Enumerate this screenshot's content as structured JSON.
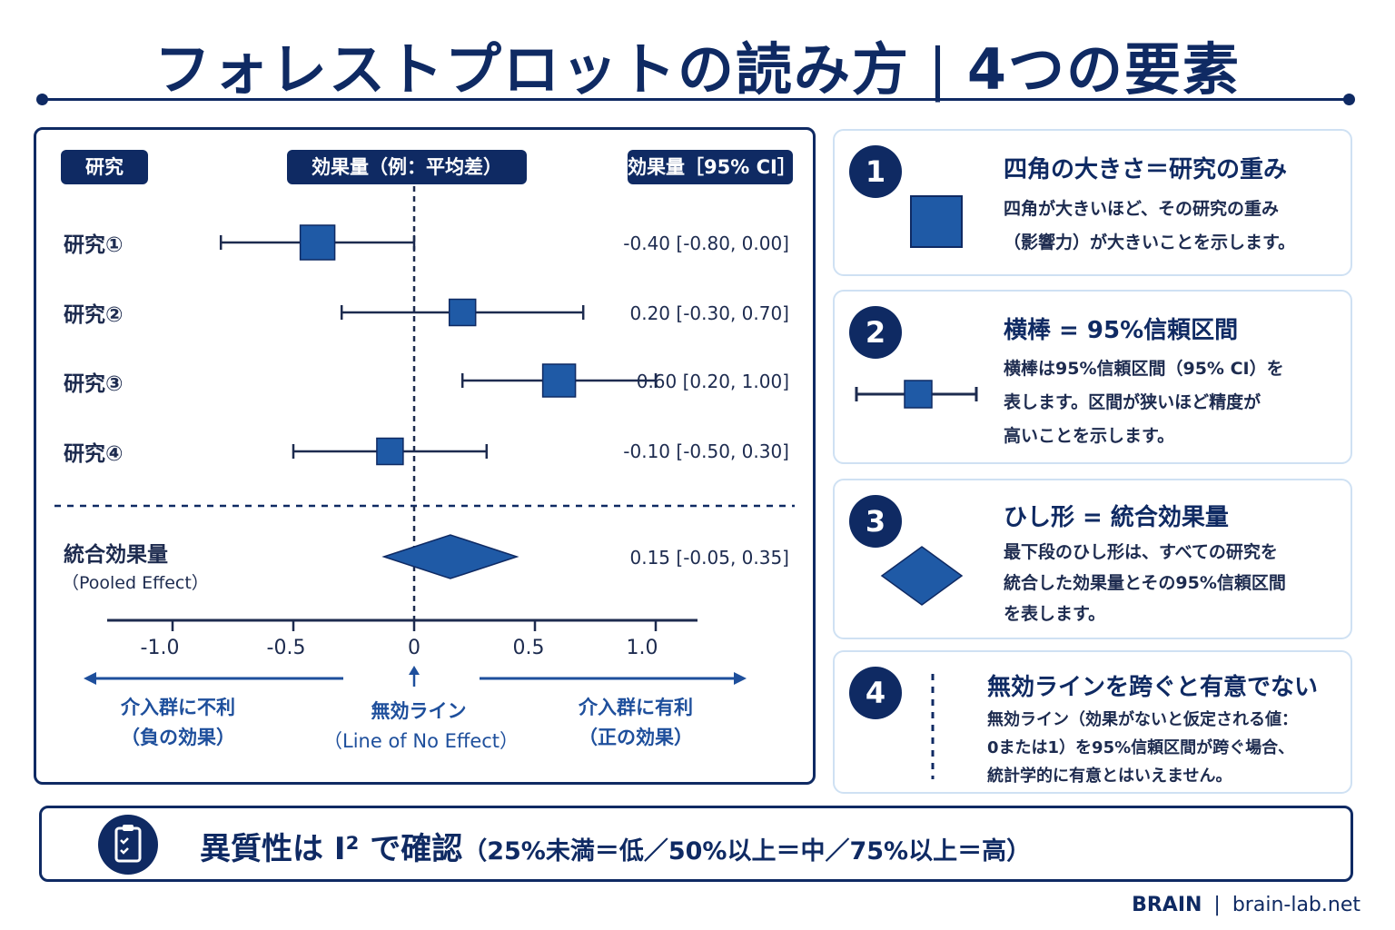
{
  "header": {
    "title_main": "フォレストプロットの読み方",
    "title_sep": "|",
    "title_sub": "4つの要素"
  },
  "plot": {
    "col_study": "研究",
    "col_effect": "効果量（例：平均差）",
    "col_ci": "効果量［95% CI］",
    "pooled_label": "統合効果量",
    "pooled_sublabel": "（Pooled Effect）",
    "axis_ticks": [
      "-1.0",
      "-0.5",
      "0",
      "0.5",
      "1.0"
    ],
    "left_direction": [
      "介入群に不利",
      "（負の効果）"
    ],
    "center_direction": [
      "無効ライン",
      "（Line of No Effect）"
    ],
    "right_direction": [
      "介入群に有利",
      "（正の効果）"
    ],
    "colors": {
      "navy": "#0f2a63",
      "marker": "#1f5aa6"
    }
  },
  "chart_data": {
    "type": "forest",
    "x_ticks": [
      -1.0,
      -0.5,
      0,
      0.5,
      1.0
    ],
    "null_line": 0,
    "studies": [
      {
        "label": "研究①",
        "estimate": -0.4,
        "ci_low": -0.8,
        "ci_high": 0.0,
        "weight": 1.0,
        "ci_text": "-0.40 [-0.80, 0.00]"
      },
      {
        "label": "研究②",
        "estimate": 0.2,
        "ci_low": -0.3,
        "ci_high": 0.7,
        "weight": 0.55,
        "ci_text": "0.20 [-0.30, 0.70]"
      },
      {
        "label": "研究③",
        "estimate": 0.6,
        "ci_low": 0.2,
        "ci_high": 1.0,
        "weight": 0.9,
        "ci_text": "0.60 [0.20, 1.00]"
      },
      {
        "label": "研究④",
        "estimate": -0.1,
        "ci_low": -0.5,
        "ci_high": 0.3,
        "weight": 0.55,
        "ci_text": "-0.10 [-0.50, 0.30]"
      }
    ],
    "pooled": {
      "estimate": 0.15,
      "ci_low": -0.05,
      "ci_high": 0.35,
      "ci_text": "0.15 [-0.05, 0.35]"
    }
  },
  "cards": [
    {
      "num": "1",
      "title": "四角の大きさ＝研究の重み",
      "body": [
        "四角が大きいほど、その研究の重み",
        "（影響力）が大きいことを示します。"
      ]
    },
    {
      "num": "2",
      "title": "横棒 = 95%信頼区間",
      "body": [
        "横棒は95%信頼区間（95% CI）を",
        "表します。区間が狭いほど精度が",
        "高いことを示します。"
      ]
    },
    {
      "num": "3",
      "title": "ひし形 = 統合効果量",
      "body": [
        "最下段のひし形は、すべての研究を",
        "統合した効果量とその95%信頼区間",
        "を表します。"
      ]
    },
    {
      "num": "4",
      "title": "無効ラインを跨ぐと有意でない",
      "body": [
        "無効ライン（効果がないと仮定される値：",
        "0または1）を95%信頼区間が跨ぐ場合、",
        "統計学的に有意とはいえません。"
      ]
    }
  ],
  "bottom": {
    "main": "異質性は I² で確認",
    "detail": "（25%未満＝低／50%以上＝中／75%以上＝高）"
  },
  "footer": {
    "brand": "BRAIN",
    "sep": "|",
    "site": "brain-lab.net"
  }
}
